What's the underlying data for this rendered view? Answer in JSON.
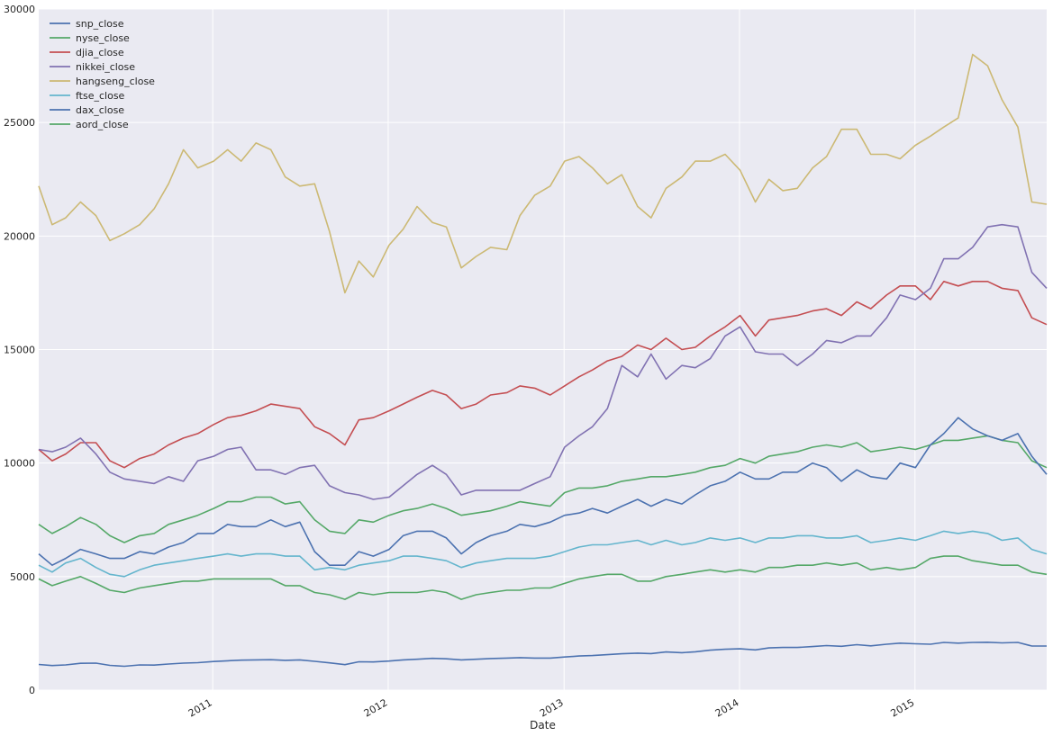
{
  "chart_data": {
    "type": "line",
    "title": "",
    "xlabel": "Date",
    "ylabel": "",
    "xlim": [
      "2010-01-04",
      "2015-10-02"
    ],
    "ylim": [
      0,
      30000
    ],
    "y_ticks": [
      0,
      5000,
      10000,
      15000,
      20000,
      25000,
      30000
    ],
    "x_ticks": [
      {
        "date": "2011-01-01",
        "label": "2011"
      },
      {
        "date": "2012-01-01",
        "label": "2012"
      },
      {
        "date": "2013-01-01",
        "label": "2013"
      },
      {
        "date": "2014-01-01",
        "label": "2014"
      },
      {
        "date": "2015-01-01",
        "label": "2015"
      }
    ],
    "grid": true,
    "legend_position": "top-left",
    "x": [
      "2010-01-04",
      "2010-02-01",
      "2010-03-01",
      "2010-04-01",
      "2010-05-03",
      "2010-06-01",
      "2010-07-01",
      "2010-08-02",
      "2010-09-01",
      "2010-10-01",
      "2010-11-01",
      "2010-12-01",
      "2011-01-03",
      "2011-02-01",
      "2011-03-01",
      "2011-04-01",
      "2011-05-02",
      "2011-06-01",
      "2011-07-01",
      "2011-08-01",
      "2011-09-01",
      "2011-10-03",
      "2011-11-01",
      "2011-12-01",
      "2012-01-03",
      "2012-02-01",
      "2012-03-01",
      "2012-04-02",
      "2012-05-01",
      "2012-06-01",
      "2012-07-02",
      "2012-08-01",
      "2012-09-04",
      "2012-10-01",
      "2012-11-01",
      "2012-12-03",
      "2013-01-02",
      "2013-02-01",
      "2013-03-01",
      "2013-04-01",
      "2013-05-01",
      "2013-06-03",
      "2013-07-01",
      "2013-08-01",
      "2013-09-03",
      "2013-10-01",
      "2013-11-01",
      "2013-12-02",
      "2014-01-02",
      "2014-02-03",
      "2014-03-03",
      "2014-04-01",
      "2014-05-01",
      "2014-06-02",
      "2014-07-01",
      "2014-08-01",
      "2014-09-02",
      "2014-10-01",
      "2014-11-03",
      "2014-12-01",
      "2015-01-02",
      "2015-02-02",
      "2015-03-02",
      "2015-04-01",
      "2015-05-01",
      "2015-06-01",
      "2015-07-01",
      "2015-08-03",
      "2015-09-01",
      "2015-10-02"
    ],
    "series": [
      {
        "name": "snp_close",
        "color": "#4c72b0",
        "values": [
          1130,
          1080,
          1110,
          1180,
          1190,
          1090,
          1050,
          1110,
          1100,
          1150,
          1190,
          1210,
          1260,
          1290,
          1320,
          1330,
          1340,
          1310,
          1330,
          1270,
          1200,
          1120,
          1250,
          1240,
          1280,
          1330,
          1360,
          1400,
          1380,
          1330,
          1360,
          1390,
          1410,
          1430,
          1410,
          1410,
          1460,
          1500,
          1520,
          1560,
          1600,
          1630,
          1610,
          1680,
          1650,
          1690,
          1760,
          1800,
          1820,
          1770,
          1860,
          1880,
          1880,
          1920,
          1960,
          1930,
          2000,
          1950,
          2020,
          2070,
          2040,
          2020,
          2100,
          2070,
          2100,
          2110,
          2080,
          2100,
          1940,
          1940
        ]
      },
      {
        "name": "nyse_close",
        "color": "#55a868",
        "values": [
          7300,
          6900,
          7200,
          7600,
          7300,
          6800,
          6500,
          6800,
          6900,
          7300,
          7500,
          7700,
          8000,
          8300,
          8300,
          8500,
          8500,
          8200,
          8300,
          7500,
          7000,
          6900,
          7500,
          7400,
          7700,
          7900,
          8000,
          8200,
          8000,
          7700,
          7800,
          7900,
          8100,
          8300,
          8200,
          8100,
          8700,
          8900,
          8900,
          9000,
          9200,
          9300,
          9400,
          9400,
          9500,
          9600,
          9800,
          9900,
          10200,
          10000,
          10300,
          10400,
          10500,
          10700,
          10800,
          10700,
          10900,
          10500,
          10600,
          10700,
          10600,
          10800,
          11000,
          11000,
          11100,
          11200,
          11000,
          10900,
          10100,
          9800
        ]
      },
      {
        "name": "djia_close",
        "color": "#c44e52",
        "values": [
          10600,
          10100,
          10400,
          10900,
          10900,
          10100,
          9800,
          10200,
          10400,
          10800,
          11100,
          11300,
          11700,
          12000,
          12100,
          12300,
          12600,
          12500,
          12400,
          11600,
          11300,
          10800,
          11900,
          12000,
          12300,
          12600,
          12900,
          13200,
          13000,
          12400,
          12600,
          13000,
          13100,
          13400,
          13300,
          13000,
          13400,
          13800,
          14100,
          14500,
          14700,
          15200,
          15000,
          15500,
          15000,
          15100,
          15600,
          16000,
          16500,
          15600,
          16300,
          16400,
          16500,
          16700,
          16800,
          16500,
          17100,
          16800,
          17400,
          17800,
          17800,
          17200,
          18000,
          17800,
          18000,
          18000,
          17700,
          17600,
          16400,
          16100
        ]
      },
      {
        "name": "nikkei_close",
        "color": "#8172b2",
        "values": [
          10600,
          10500,
          10700,
          11100,
          10400,
          9600,
          9300,
          9200,
          9100,
          9400,
          9200,
          10100,
          10300,
          10600,
          10700,
          9700,
          9700,
          9500,
          9800,
          9900,
          9000,
          8700,
          8600,
          8400,
          8500,
          9000,
          9500,
          9900,
          9500,
          8600,
          8800,
          8800,
          8800,
          8800,
          9100,
          9400,
          10700,
          11200,
          11600,
          12400,
          14300,
          13800,
          14800,
          13700,
          14300,
          14200,
          14600,
          15600,
          16000,
          14900,
          14800,
          14800,
          14300,
          14800,
          15400,
          15300,
          15600,
          15600,
          16400,
          17400,
          17200,
          17700,
          19000,
          19000,
          19500,
          20400,
          20500,
          20400,
          18400,
          17700
        ]
      },
      {
        "name": "hangseng_close",
        "color": "#ccb974",
        "values": [
          22200,
          20500,
          20800,
          21500,
          20900,
          19800,
          20100,
          20500,
          21200,
          22300,
          23800,
          23000,
          23300,
          23800,
          23300,
          24100,
          23800,
          22600,
          22200,
          22300,
          20200,
          17500,
          18900,
          18200,
          19600,
          20300,
          21300,
          20600,
          20400,
          18600,
          19100,
          19500,
          19400,
          20900,
          21800,
          22200,
          23300,
          23500,
          23000,
          22300,
          22700,
          21300,
          20800,
          22100,
          22600,
          23300,
          23300,
          23600,
          22900,
          21500,
          22500,
          22000,
          22100,
          23000,
          23500,
          24700,
          24700,
          23600,
          23600,
          23400,
          24000,
          24400,
          24800,
          25200,
          28000,
          27500,
          26000,
          24800,
          21500,
          21400
        ]
      },
      {
        "name": "ftse_close",
        "color": "#64b5cd",
        "values": [
          5500,
          5200,
          5600,
          5800,
          5400,
          5100,
          5000,
          5300,
          5500,
          5600,
          5700,
          5800,
          5900,
          6000,
          5900,
          6000,
          6000,
          5900,
          5900,
          5300,
          5400,
          5300,
          5500,
          5600,
          5700,
          5900,
          5900,
          5800,
          5700,
          5400,
          5600,
          5700,
          5800,
          5800,
          5800,
          5900,
          6100,
          6300,
          6400,
          6400,
          6500,
          6600,
          6400,
          6600,
          6400,
          6500,
          6700,
          6600,
          6700,
          6500,
          6700,
          6700,
          6800,
          6800,
          6700,
          6700,
          6800,
          6500,
          6600,
          6700,
          6600,
          6800,
          7000,
          6900,
          7000,
          6900,
          6600,
          6700,
          6200,
          6000
        ]
      },
      {
        "name": "dax_close",
        "color": "#4c72b0",
        "values": [
          6000,
          5500,
          5800,
          6200,
          6000,
          5800,
          5800,
          6100,
          6000,
          6300,
          6500,
          6900,
          6900,
          7300,
          7200,
          7200,
          7500,
          7200,
          7400,
          6100,
          5500,
          5500,
          6100,
          5900,
          6200,
          6800,
          7000,
          7000,
          6700,
          6000,
          6500,
          6800,
          7000,
          7300,
          7200,
          7400,
          7700,
          7800,
          8000,
          7800,
          8100,
          8400,
          8100,
          8400,
          8200,
          8600,
          9000,
          9200,
          9600,
          9300,
          9300,
          9600,
          9600,
          10000,
          9800,
          9200,
          9700,
          9400,
          9300,
          10000,
          9800,
          10800,
          11300,
          12000,
          11500,
          11200,
          11000,
          11300,
          10300,
          9500
        ]
      },
      {
        "name": "aord_close",
        "color": "#55a868",
        "values": [
          4900,
          4600,
          4800,
          5000,
          4700,
          4400,
          4300,
          4500,
          4600,
          4700,
          4800,
          4800,
          4900,
          4900,
          4900,
          4900,
          4900,
          4600,
          4600,
          4300,
          4200,
          4000,
          4300,
          4200,
          4300,
          4300,
          4300,
          4400,
          4300,
          4000,
          4200,
          4300,
          4400,
          4400,
          4500,
          4500,
          4700,
          4900,
          5000,
          5100,
          5100,
          4800,
          4800,
          5000,
          5100,
          5200,
          5300,
          5200,
          5300,
          5200,
          5400,
          5400,
          5500,
          5500,
          5600,
          5500,
          5600,
          5300,
          5400,
          5300,
          5400,
          5800,
          5900,
          5900,
          5700,
          5600,
          5500,
          5500,
          5200,
          5100
        ]
      }
    ]
  }
}
